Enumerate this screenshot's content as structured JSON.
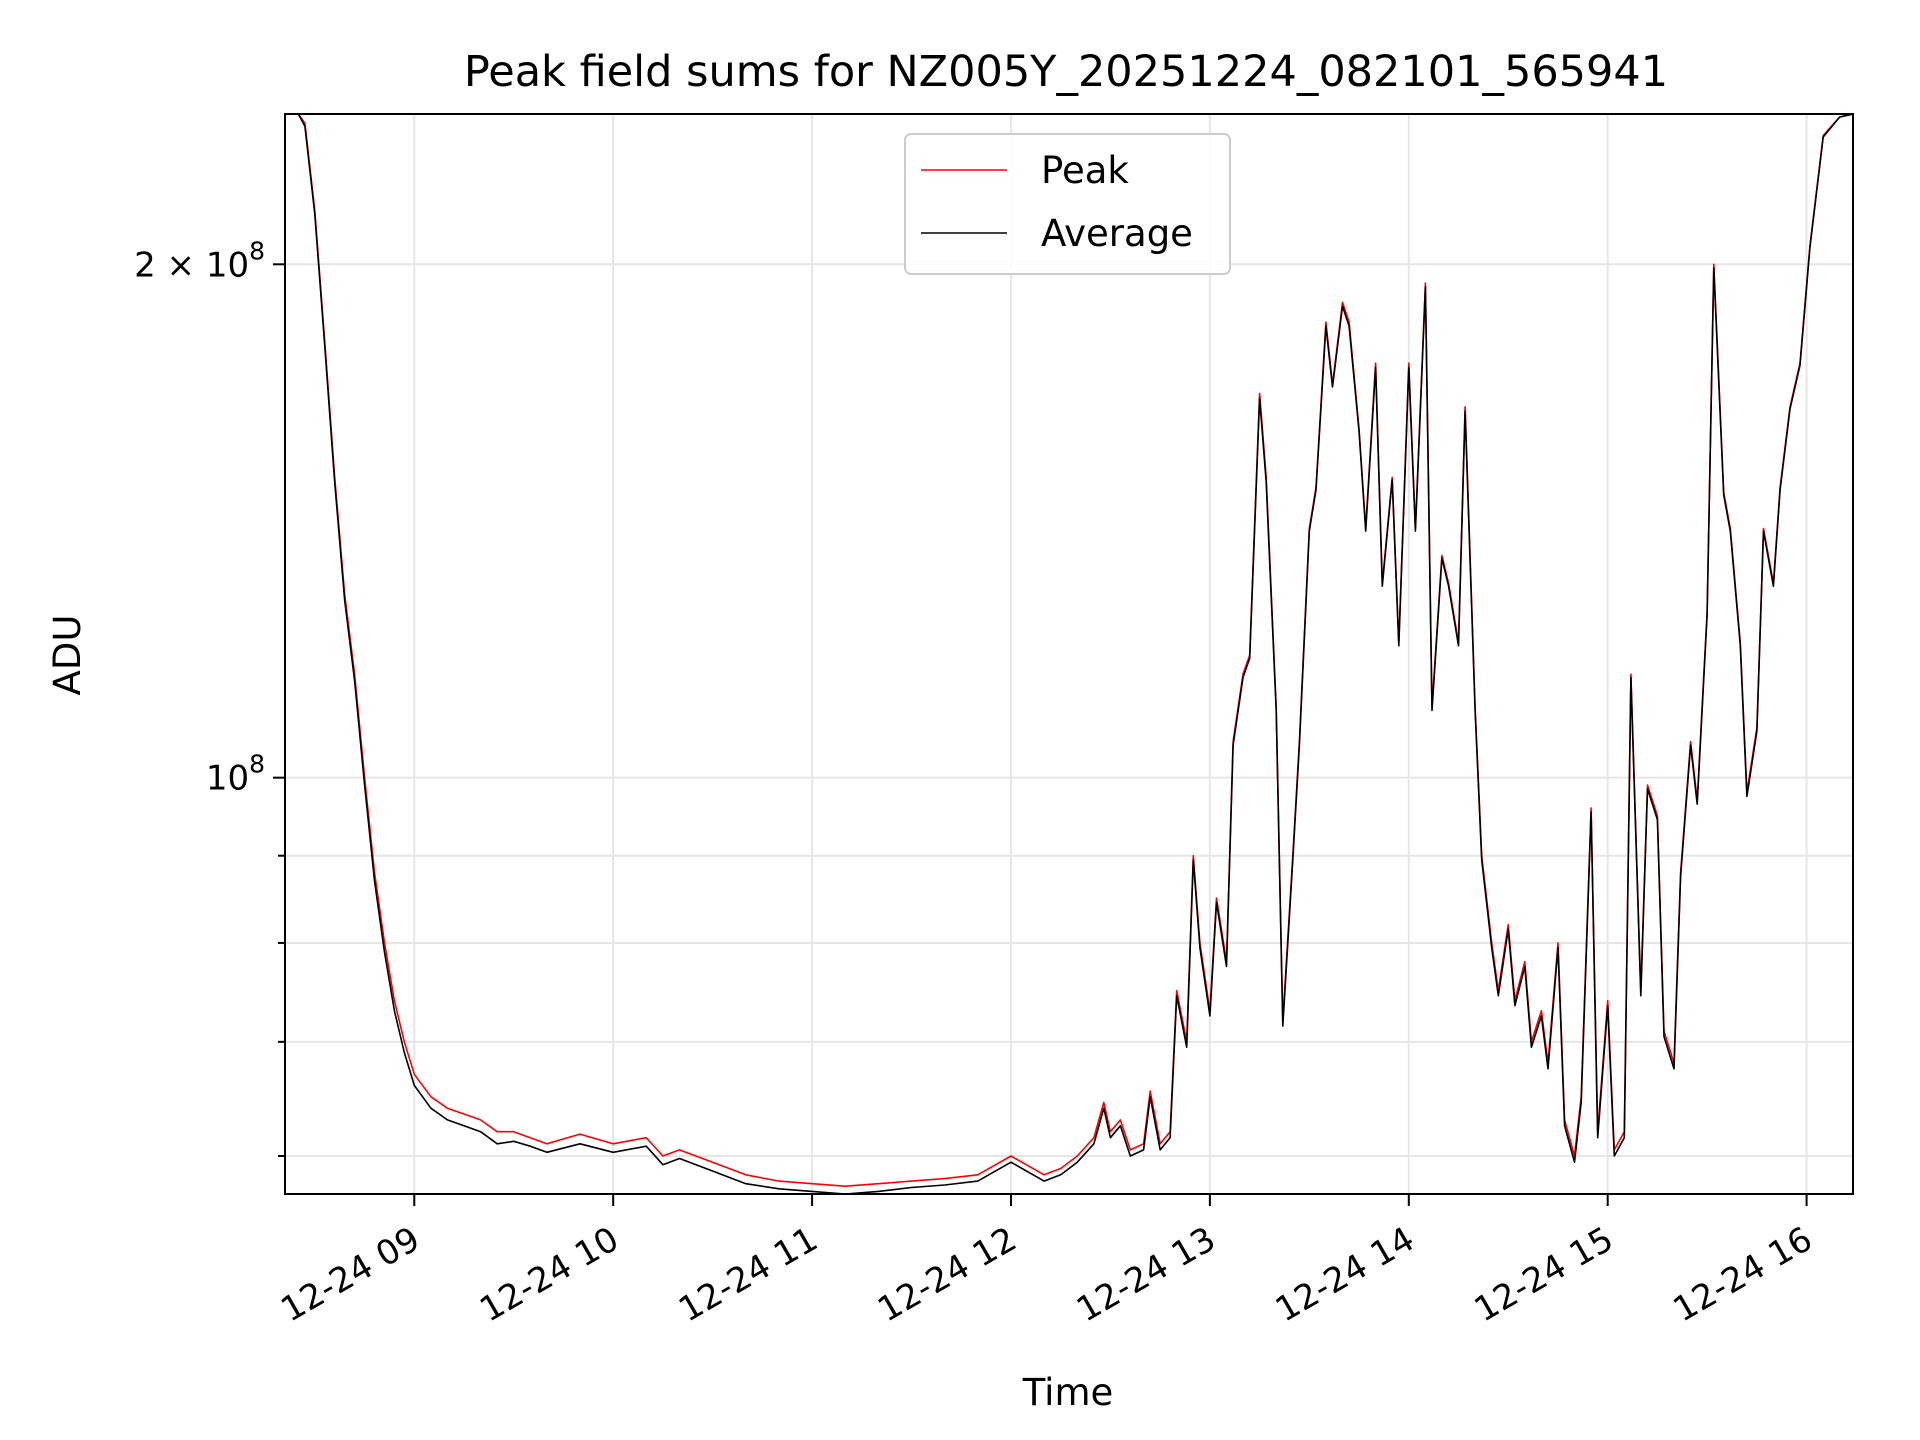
{
  "chart_data": {
    "type": "line",
    "title": "Peak field sums for NZ005Y_20251224_082101_565941",
    "xlabel": "Time",
    "ylabel": "ADU",
    "yscale": "log",
    "grid": true,
    "legend_position": "upper center",
    "x_range": [
      "2025-12-24 08:21",
      "2025-12-24 16:14"
    ],
    "ylim": [
      57000000,
      245000000
    ],
    "x_ticks": [
      "12-24 09",
      "12-24 10",
      "12-24 11",
      "12-24 12",
      "12-24 13",
      "12-24 14",
      "12-24 15",
      "12-24 16"
    ],
    "y_ticks": [
      {
        "value": 100000000,
        "mantissa": "",
        "exp": "8",
        "base": "10"
      },
      {
        "value": 200000000,
        "mantissa": "2 × ",
        "exp": "8",
        "base": "10"
      }
    ],
    "y_minor_ticks": [
      60000000,
      70000000,
      80000000,
      90000000
    ],
    "series": [
      {
        "name": "Peak",
        "color": "#ff0000",
        "x": [
          "08:21",
          "08:25",
          "08:27",
          "08:30",
          "08:33",
          "08:36",
          "08:39",
          "08:42",
          "08:45",
          "08:48",
          "08:51",
          "08:54",
          "08:57",
          "09:00",
          "09:05",
          "09:10",
          "09:15",
          "09:20",
          "09:25",
          "09:30",
          "09:35",
          "09:40",
          "09:50",
          "10:00",
          "10:10",
          "10:15",
          "10:20",
          "10:30",
          "10:40",
          "10:50",
          "11:00",
          "11:10",
          "11:20",
          "11:30",
          "11:40",
          "11:50",
          "12:00",
          "12:10",
          "12:15",
          "12:20",
          "12:25",
          "12:28",
          "12:30",
          "12:33",
          "12:36",
          "12:40",
          "12:42",
          "12:45",
          "12:48",
          "12:50",
          "12:53",
          "12:55",
          "12:57",
          "13:00",
          "13:02",
          "13:05",
          "13:07",
          "13:10",
          "13:12",
          "13:15",
          "13:17",
          "13:20",
          "13:22",
          "13:25",
          "13:27",
          "13:30",
          "13:32",
          "13:35",
          "13:37",
          "13:40",
          "13:42",
          "13:45",
          "13:47",
          "13:50",
          "13:52",
          "13:55",
          "13:57",
          "14:00",
          "14:02",
          "14:05",
          "14:07",
          "14:10",
          "14:12",
          "14:15",
          "14:17",
          "14:20",
          "14:22",
          "14:25",
          "14:27",
          "14:30",
          "14:32",
          "14:35",
          "14:37",
          "14:40",
          "14:42",
          "14:45",
          "14:47",
          "14:50",
          "14:52",
          "14:55",
          "14:57",
          "15:00",
          "15:02",
          "15:05",
          "15:07",
          "15:10",
          "15:12",
          "15:15",
          "15:17",
          "15:20",
          "15:22",
          "15:25",
          "15:27",
          "15:30",
          "15:32",
          "15:35",
          "15:37",
          "15:40",
          "15:42",
          "15:45",
          "15:47",
          "15:50",
          "15:52",
          "15:55",
          "15:58",
          "16:01",
          "16:05",
          "16:10",
          "16:14"
        ],
        "y": [
          245000000,
          245000000,
          242000000,
          215000000,
          180000000,
          150000000,
          128000000,
          115000000,
          100000000,
          88000000,
          80000000,
          74000000,
          70000000,
          67000000,
          65000000,
          64000000,
          63500000,
          63000000,
          62000000,
          62000000,
          61500000,
          61000000,
          61800000,
          61000000,
          61500000,
          60000000,
          60500000,
          59500000,
          58500000,
          58000000,
          57800000,
          57600000,
          57800000,
          58000000,
          58200000,
          58500000,
          60000000,
          58500000,
          59000000,
          60000000,
          61500000,
          64500000,
          62000000,
          63000000,
          60500000,
          61000000,
          65500000,
          61000000,
          62000000,
          75000000,
          70000000,
          90000000,
          80000000,
          73000000,
          85000000,
          78000000,
          105000000,
          115000000,
          118000000,
          168000000,
          150000000,
          110000000,
          72000000,
          90000000,
          105000000,
          140000000,
          148000000,
          185000000,
          170000000,
          190000000,
          185000000,
          160000000,
          140000000,
          175000000,
          130000000,
          150000000,
          120000000,
          175000000,
          140000000,
          195000000,
          110000000,
          135000000,
          130000000,
          120000000,
          165000000,
          110000000,
          90000000,
          80000000,
          75000000,
          82000000,
          74000000,
          78000000,
          70000000,
          73000000,
          68000000,
          80000000,
          63000000,
          60000000,
          65000000,
          96000000,
          62000000,
          74000000,
          60500000,
          62000000,
          115000000,
          75000000,
          99000000,
          95000000,
          71000000,
          68000000,
          88000000,
          105000000,
          97000000,
          125000000,
          200000000,
          147000000,
          140000000,
          120000000,
          98000000,
          107000000,
          140000000,
          130000000,
          148000000,
          165000000,
          175000000,
          205000000,
          238000000,
          244000000,
          245000000
        ]
      },
      {
        "name": "Average",
        "color": "#000000",
        "x": [
          "08:21",
          "08:25",
          "08:27",
          "08:30",
          "08:33",
          "08:36",
          "08:39",
          "08:42",
          "08:45",
          "08:48",
          "08:51",
          "08:54",
          "08:57",
          "09:00",
          "09:05",
          "09:10",
          "09:15",
          "09:20",
          "09:25",
          "09:30",
          "09:35",
          "09:40",
          "09:50",
          "10:00",
          "10:10",
          "10:15",
          "10:20",
          "10:30",
          "10:40",
          "10:50",
          "11:00",
          "11:10",
          "11:20",
          "11:30",
          "11:40",
          "11:50",
          "12:00",
          "12:10",
          "12:15",
          "12:20",
          "12:25",
          "12:28",
          "12:30",
          "12:33",
          "12:36",
          "12:40",
          "12:42",
          "12:45",
          "12:48",
          "12:50",
          "12:53",
          "12:55",
          "12:57",
          "13:00",
          "13:02",
          "13:05",
          "13:07",
          "13:10",
          "13:12",
          "13:15",
          "13:17",
          "13:20",
          "13:22",
          "13:25",
          "13:27",
          "13:30",
          "13:32",
          "13:35",
          "13:37",
          "13:40",
          "13:42",
          "13:45",
          "13:47",
          "13:50",
          "13:52",
          "13:55",
          "13:57",
          "14:00",
          "14:02",
          "14:05",
          "14:07",
          "14:10",
          "14:12",
          "14:15",
          "14:17",
          "14:20",
          "14:22",
          "14:25",
          "14:27",
          "14:30",
          "14:32",
          "14:35",
          "14:37",
          "14:40",
          "14:42",
          "14:45",
          "14:47",
          "14:50",
          "14:52",
          "14:55",
          "14:57",
          "15:00",
          "15:02",
          "15:05",
          "15:07",
          "15:10",
          "15:12",
          "15:15",
          "15:17",
          "15:20",
          "15:22",
          "15:25",
          "15:27",
          "15:30",
          "15:32",
          "15:35",
          "15:37",
          "15:40",
          "15:42",
          "15:45",
          "15:47",
          "15:50",
          "15:52",
          "15:55",
          "15:58",
          "16:01",
          "16:05",
          "16:10",
          "16:14"
        ],
        "y": [
          245000000,
          245000000,
          241000000,
          214000000,
          179000000,
          149000000,
          127000000,
          114000000,
          99000000,
          87000000,
          79000000,
          73000000,
          69000000,
          66000000,
          64000000,
          63000000,
          62500000,
          62000000,
          61000000,
          61200000,
          60800000,
          60300000,
          61000000,
          60300000,
          60800000,
          59300000,
          59800000,
          58800000,
          57800000,
          57400000,
          57200000,
          57000000,
          57200000,
          57500000,
          57700000,
          58000000,
          59500000,
          58000000,
          58500000,
          59500000,
          61000000,
          64000000,
          61500000,
          62500000,
          60000000,
          60500000,
          65000000,
          60500000,
          61500000,
          74500000,
          69500000,
          89500000,
          79500000,
          72500000,
          84500000,
          77500000,
          104500000,
          114500000,
          117500000,
          167000000,
          149000000,
          109500000,
          71500000,
          89500000,
          104500000,
          139500000,
          147500000,
          184000000,
          169500000,
          189000000,
          184000000,
          159500000,
          139500000,
          174000000,
          129500000,
          149500000,
          119500000,
          174000000,
          139500000,
          194000000,
          109500000,
          134500000,
          129500000,
          119500000,
          164000000,
          109500000,
          89500000,
          79500000,
          74500000,
          81500000,
          73500000,
          77500000,
          69500000,
          72500000,
          67500000,
          79500000,
          62500000,
          59500000,
          64500000,
          95500000,
          61500000,
          73500000,
          60000000,
          61500000,
          114500000,
          74500000,
          98500000,
          94500000,
          70500000,
          67500000,
          87500000,
          104500000,
          96500000,
          124500000,
          199000000,
          146500000,
          139500000,
          119500000,
          97500000,
          106500000,
          139500000,
          129500000,
          147500000,
          164500000,
          174500000,
          204500000,
          237500000,
          244000000,
          245000000
        ]
      }
    ]
  }
}
